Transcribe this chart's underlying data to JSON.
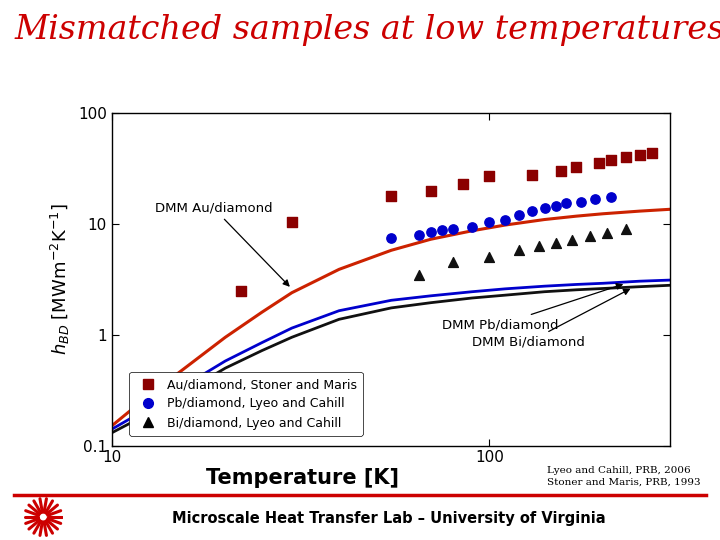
{
  "title": "Mismatched samples at low temperatures",
  "title_color": "#cc0000",
  "title_fontsize": 24,
  "xlabel": "Temperature [K]",
  "xlabel_fontsize": 15,
  "ylabel": "$h_{BD}$ [MWm$^{-2}$K$^{-1}$]",
  "ylabel_fontsize": 13,
  "xlim": [
    10,
    300
  ],
  "ylim": [
    0.1,
    100
  ],
  "footer_text": "Microscale Heat Transfer Lab – University of Virginia",
  "citation_line1": "Lyeo and Cahill, PRB, 2006",
  "citation_line2": "Stoner and Maris, PRB, 1993",
  "bg_color": "#ffffff",
  "dmm_au_label": "DMM Au/diamond",
  "dmm_pb_label": "DMM Pb/diamond",
  "dmm_bi_label": "DMM Bi/diamond",
  "legend_entries": [
    {
      "label": "Au/diamond, Stoner and Maris",
      "color": "#8b0000",
      "marker": "s"
    },
    {
      "label": "Pb/diamond, Lyeo and Cahill",
      "color": "#0000cc",
      "marker": "o"
    },
    {
      "label": "Bi/diamond, Lyeo and Cahill",
      "color": "#000000",
      "marker": "^"
    }
  ],
  "au_data_x": [
    22,
    30,
    55,
    70,
    85,
    100,
    130,
    155,
    170,
    195,
    210,
    230,
    250,
    270
  ],
  "au_data_y": [
    2.5,
    10.5,
    18,
    20,
    23,
    27,
    28,
    30,
    33,
    36,
    38,
    40,
    42,
    44
  ],
  "pb_data_x": [
    55,
    65,
    70,
    75,
    80,
    90,
    100,
    110,
    120,
    130,
    140,
    150,
    160,
    175,
    190,
    210
  ],
  "pb_data_y": [
    7.5,
    8.0,
    8.5,
    8.8,
    9.0,
    9.5,
    10.5,
    11.0,
    12.0,
    13.0,
    14.0,
    14.5,
    15.5,
    16.0,
    17.0,
    17.5
  ],
  "bi_data_x": [
    65,
    80,
    100,
    120,
    135,
    150,
    165,
    185,
    205,
    230
  ],
  "bi_data_y": [
    3.5,
    4.5,
    5.0,
    5.8,
    6.3,
    6.8,
    7.2,
    7.8,
    8.3,
    9.0
  ],
  "dmm_au_x": [
    10,
    12,
    15,
    20,
    25,
    30,
    40,
    55,
    70,
    90,
    110,
    140,
    170,
    200,
    250,
    300
  ],
  "dmm_au_y": [
    0.15,
    0.25,
    0.45,
    0.95,
    1.6,
    2.4,
    3.9,
    5.8,
    7.3,
    8.7,
    9.8,
    11.0,
    11.8,
    12.4,
    13.1,
    13.6
  ],
  "dmm_pb_x": [
    10,
    12,
    15,
    20,
    25,
    30,
    40,
    55,
    70,
    90,
    110,
    140,
    170,
    200,
    250,
    300
  ],
  "dmm_pb_y": [
    0.14,
    0.2,
    0.32,
    0.58,
    0.85,
    1.15,
    1.65,
    2.05,
    2.25,
    2.45,
    2.6,
    2.75,
    2.85,
    2.92,
    3.05,
    3.12
  ],
  "dmm_bi_x": [
    10,
    12,
    15,
    20,
    25,
    30,
    40,
    55,
    70,
    90,
    110,
    140,
    170,
    200,
    250,
    300
  ],
  "dmm_bi_y": [
    0.13,
    0.18,
    0.28,
    0.5,
    0.72,
    0.95,
    1.38,
    1.75,
    1.95,
    2.15,
    2.28,
    2.45,
    2.55,
    2.62,
    2.72,
    2.8
  ]
}
